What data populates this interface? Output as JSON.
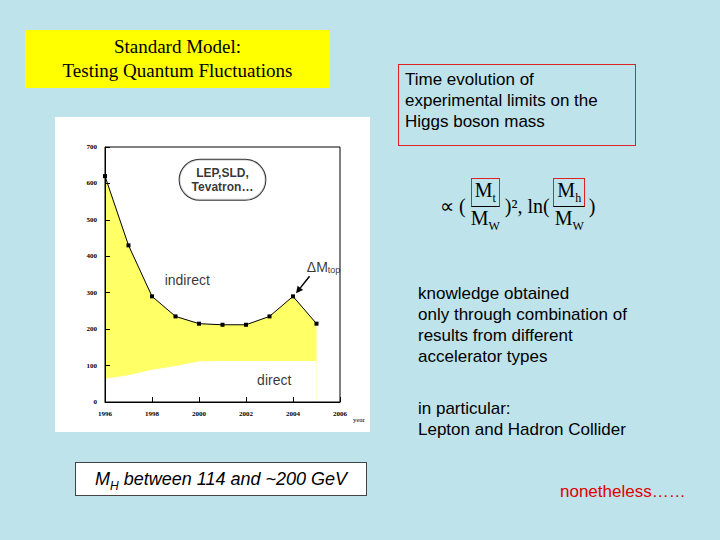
{
  "slide": {
    "title": [
      "Standard Model:",
      "Testing Quantum Fluctuations"
    ],
    "caption": "Time evolution of experimental limits on the Higgs boson mass",
    "formula": {
      "prefix": "∝ (",
      "frac1": {
        "num": "M",
        "num_sub": "t",
        "den": "M",
        "den_sub": "W"
      },
      "mid": ")², ln(",
      "frac2": {
        "num": "M",
        "num_sub": "h",
        "den": "M",
        "den_sub": "W"
      },
      "suffix": ")"
    },
    "notes": [
      "knowledge obtained",
      "only through combination of",
      "results from different",
      "accelerator types"
    ],
    "notes2": [
      "in particular:",
      "Lepton and Hadron Collider"
    ],
    "highlight": "nonetheless……",
    "summary": {
      "symbol": "M",
      "sub": "H",
      "text": " between 114 and ~200 GeV"
    }
  },
  "chart_data": {
    "type": "line",
    "x": [
      1996,
      1997,
      1998,
      1999,
      2000,
      2001,
      2002,
      2003,
      2004,
      2005
    ],
    "series": [
      {
        "values": [
          620,
          430,
          290,
          235,
          215,
          212,
          212,
          235,
          290,
          215
        ],
        "color": "#ffff66",
        "marker": "square"
      },
      {
        "values": [
          65,
          75,
          90,
          100,
          113,
          114,
          114,
          114,
          114,
          114
        ],
        "marker": "none"
      }
    ],
    "xlabel": "year",
    "xlim": [
      1996,
      2006
    ],
    "xticks": [
      1996,
      1998,
      2000,
      2002,
      2004,
      2006
    ],
    "ylim": [
      0,
      700
    ],
    "yticks": [
      0,
      100,
      200,
      300,
      400,
      500,
      600,
      700
    ],
    "grid": false,
    "annotations": [
      {
        "text": [
          "LEP,SLD,",
          "Tevatron…"
        ],
        "x": 2001,
        "y": 610
      },
      {
        "text": "indirect",
        "x": 1999.5,
        "y": 335
      },
      {
        "text": "ΔM",
        "sub": "top",
        "x": 2005.3,
        "y": 370,
        "arrow_to": 8
      },
      {
        "text": "direct",
        "x": 2003.2,
        "y": 60
      }
    ]
  }
}
